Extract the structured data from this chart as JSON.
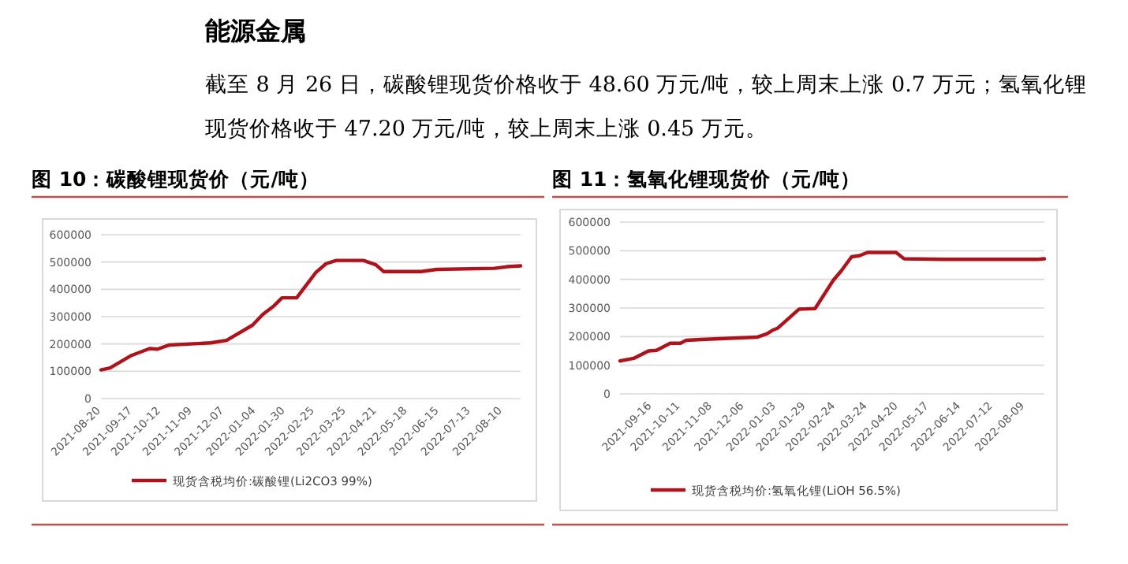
{
  "chart_data": [
    {
      "type": "other",
      "title": "能源金属",
      "annotations": [
        "截至 8 月 26 日，碳酸锂现货价格收于 48.60 万元/吨，较上周末上涨 0.7 万元；氢氧化锂现货价格收于 47.20 万元/吨，较上周末上涨 0.45 万元。"
      ]
    },
    {
      "type": "line",
      "title": "图 10：碳酸锂现货价（元/吨）",
      "xlim": [
        "2021-08-20",
        "2022-08-26"
      ],
      "ylim": [
        0,
        600000
      ],
      "yticks": [
        0,
        100000,
        200000,
        300000,
        400000,
        500000,
        600000
      ],
      "xticks": [
        "2021-08-20",
        "2021-09-17",
        "2021-10-12",
        "2021-11-09",
        "2021-12-07",
        "2022-01-04",
        "2022-01-30",
        "2022-02-25",
        "2022-03-25",
        "2022-04-21",
        "2022-05-18",
        "2022-06-15",
        "2022-07-13",
        "2022-08-10"
      ],
      "grid": "y",
      "legend": "bottom",
      "marker": "none",
      "line_style": "solid",
      "series": [
        {
          "name": "现货含税均价:碳酸锂(Li2CO3 99%)",
          "color": "#b0121b",
          "x": [
            "2021-08-20",
            "2021-08-28",
            "2021-09-16",
            "2021-10-02",
            "2021-10-09",
            "2021-10-19",
            "2021-11-25",
            "2021-12-09",
            "2022-01-01",
            "2022-01-10",
            "2022-01-20",
            "2022-01-27",
            "2022-02-09",
            "2022-02-26",
            "2022-03-07",
            "2022-03-16",
            "2022-04-09",
            "2022-04-20",
            "2022-04-27",
            "2022-05-30",
            "2022-06-13",
            "2022-08-03",
            "2022-08-14",
            "2022-08-26"
          ],
          "values": [
            105000,
            112000,
            158000,
            183000,
            181000,
            196000,
            204000,
            213000,
            269000,
            308000,
            340000,
            369000,
            369000,
            462000,
            494000,
            506000,
            506000,
            490000,
            465000,
            465000,
            473000,
            477000,
            483000,
            486000
          ]
        }
      ]
    },
    {
      "type": "line",
      "title": "图 11：氢氧化锂现货价（元/吨）",
      "xlim": [
        "2021-08-19",
        "2022-08-26"
      ],
      "ylim": [
        0,
        600000
      ],
      "yticks": [
        0,
        100000,
        200000,
        300000,
        400000,
        500000,
        600000
      ],
      "xticks": [
        "2021-09-16",
        "2021-10-11",
        "2021-11-08",
        "2021-12-06",
        "2022-01-03",
        "2022-01-29",
        "2022-02-24",
        "2022-03-24",
        "2022-04-20",
        "2022-05-17",
        "2022-06-14",
        "2022-07-12",
        "2022-08-09"
      ],
      "grid": "y",
      "legend": "bottom",
      "marker": "none",
      "line_style": "solid",
      "series": [
        {
          "name": "现货含税均价:氢氧化锂(LiOH 56.5%)",
          "color": "#b0121b",
          "x": [
            "2021-08-19",
            "2021-08-31",
            "2021-09-13",
            "2021-09-20",
            "2021-10-02",
            "2021-10-11",
            "2021-10-16",
            "2021-10-29",
            "2021-12-17",
            "2021-12-26",
            "2021-12-31",
            "2022-01-04",
            "2022-01-23",
            "2022-02-06",
            "2022-02-22",
            "2022-03-01",
            "2022-03-10",
            "2022-03-17",
            "2022-03-24",
            "2022-04-18",
            "2022-04-25",
            "2022-05-31",
            "2022-08-20",
            "2022-08-26"
          ],
          "values": [
            115000,
            124000,
            150000,
            152000,
            177000,
            177000,
            187000,
            190000,
            198000,
            210000,
            223000,
            229000,
            296000,
            298000,
            397000,
            430000,
            479000,
            483000,
            494000,
            494000,
            472000,
            470000,
            470000,
            472000
          ]
        }
      ]
    }
  ]
}
